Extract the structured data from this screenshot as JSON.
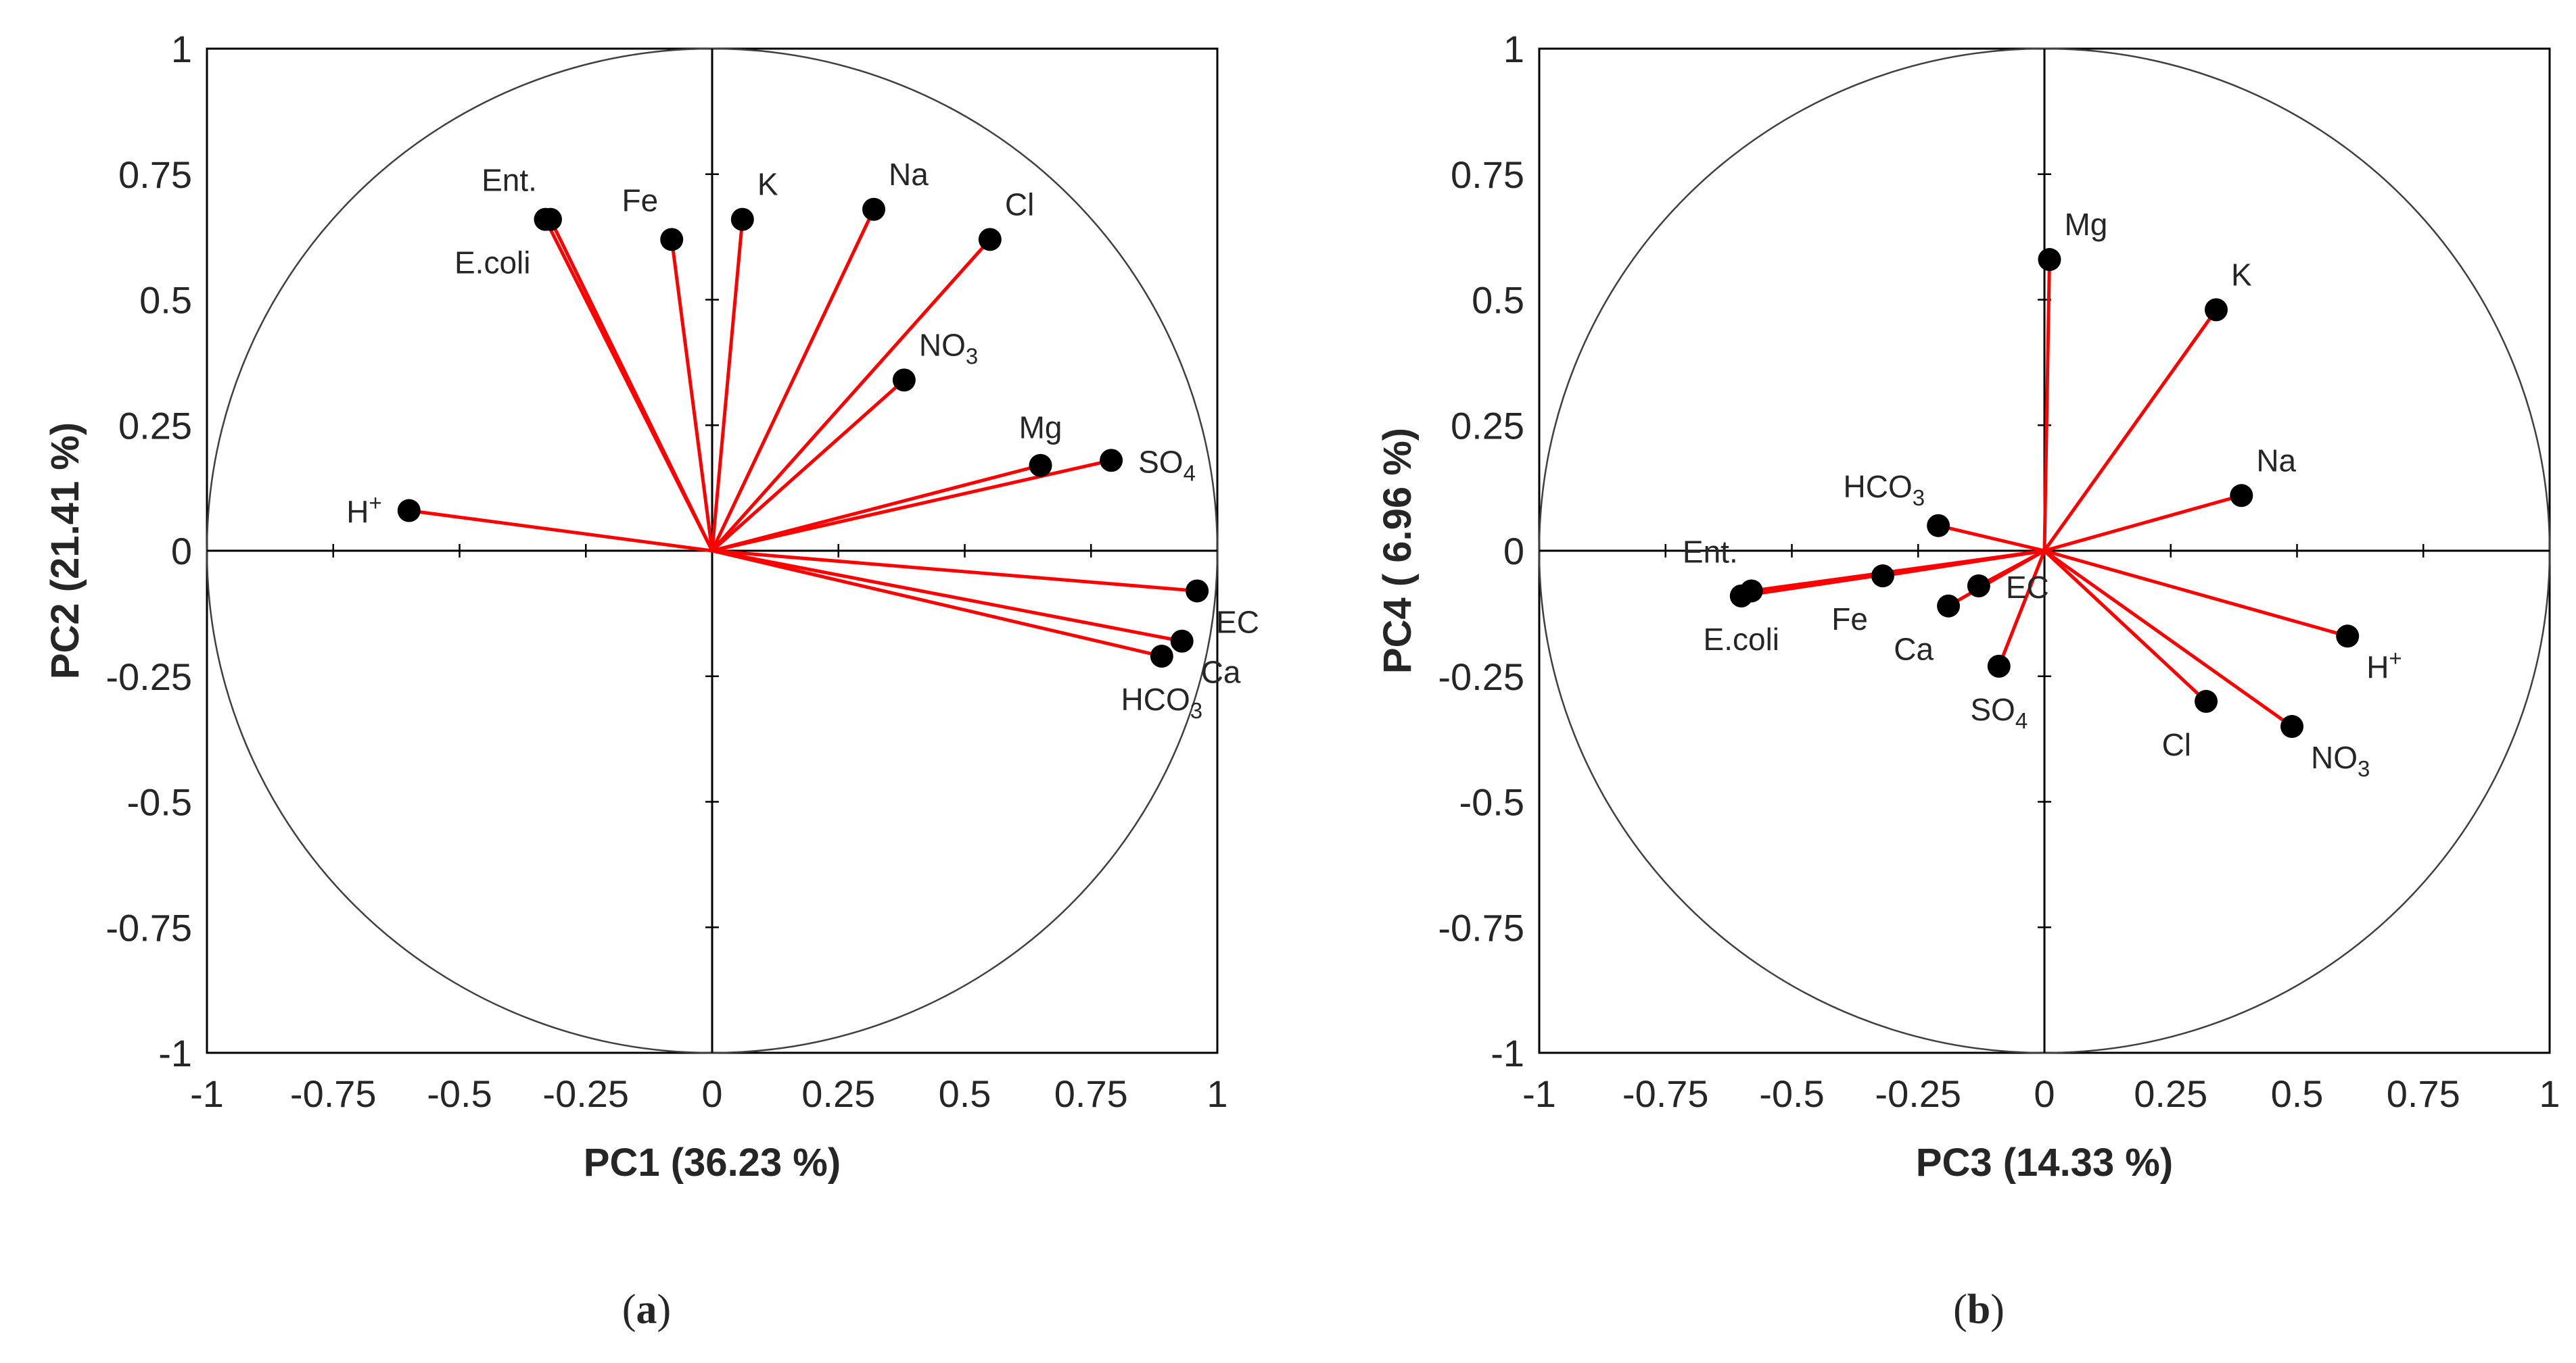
{
  "chart_data": [
    {
      "type": "scatter",
      "subtype": "pca-loading-correlation-circle",
      "caption": {
        "open": "(",
        "letter": "a",
        "close": ")"
      },
      "xlabel": "PC1 (36.23 %)",
      "ylabel": "PC2 (21.41 %)",
      "xlim": [
        -1,
        1
      ],
      "ylim": [
        -1,
        1
      ],
      "ticks": [
        -1,
        -0.75,
        -0.5,
        -0.25,
        0,
        0.25,
        0.5,
        0.75,
        1
      ],
      "tick_labels": [
        "-1",
        "-0.75",
        "-0.5",
        "-0.25",
        "0",
        "0.25",
        "0.5",
        "0.75",
        "1"
      ],
      "grid": false,
      "unit_circle": true,
      "colors": {
        "vector": "#ff0000",
        "point": "#000000",
        "axis": "#000000",
        "circle": "#404040"
      },
      "points": [
        {
          "label": "Ent.",
          "x": -0.32,
          "y": 0.66,
          "anchor": "above-left"
        },
        {
          "label": "E.coli",
          "x": -0.33,
          "y": 0.66,
          "anchor": "below-left"
        },
        {
          "label": "Fe",
          "x": -0.08,
          "y": 0.62,
          "anchor": "above-left"
        },
        {
          "label": "K",
          "x": 0.06,
          "y": 0.66,
          "anchor": "above-right"
        },
        {
          "label": "Na",
          "x": 0.32,
          "y": 0.68,
          "anchor": "above-right"
        },
        {
          "label": "Cl",
          "x": 0.55,
          "y": 0.62,
          "anchor": "above-right"
        },
        {
          "label": "NO",
          "sub": "3",
          "x": 0.38,
          "y": 0.34,
          "anchor": "above-right"
        },
        {
          "label": "Mg",
          "x": 0.65,
          "y": 0.17,
          "anchor": "above"
        },
        {
          "label": "SO",
          "sub": "4",
          "x": 0.79,
          "y": 0.18,
          "anchor": "right"
        },
        {
          "label": "H",
          "sup": "+",
          "x": -0.6,
          "y": 0.08,
          "anchor": "left"
        },
        {
          "label": "EC",
          "x": 0.96,
          "y": -0.08,
          "anchor": "below-right"
        },
        {
          "label": "Ca",
          "x": 0.93,
          "y": -0.18,
          "anchor": "below-right"
        },
        {
          "label": "HCO",
          "sub": "3",
          "x": 0.89,
          "y": -0.21,
          "anchor": "below"
        }
      ]
    },
    {
      "type": "scatter",
      "subtype": "pca-loading-correlation-circle",
      "caption": {
        "open": "(",
        "letter": "b",
        "close": ")"
      },
      "xlabel": "PC3 (14.33 %)",
      "ylabel": "PC4 ( 6.96 %)",
      "xlim": [
        -1,
        1
      ],
      "ylim": [
        -1,
        1
      ],
      "ticks": [
        -1,
        -0.75,
        -0.5,
        -0.25,
        0,
        0.25,
        0.5,
        0.75,
        1
      ],
      "tick_labels": [
        "-1",
        "-0.75",
        "-0.5",
        "-0.25",
        "0",
        "0.25",
        "0.5",
        "0.75",
        "1"
      ],
      "grid": false,
      "unit_circle": true,
      "colors": {
        "vector": "#ff0000",
        "point": "#000000",
        "axis": "#000000",
        "circle": "#404040"
      },
      "points": [
        {
          "label": "Mg",
          "x": 0.01,
          "y": 0.58,
          "anchor": "above-right"
        },
        {
          "label": "K",
          "x": 0.34,
          "y": 0.48,
          "anchor": "above-right"
        },
        {
          "label": "Na",
          "x": 0.39,
          "y": 0.11,
          "anchor": "above-right"
        },
        {
          "label": "HCO",
          "sub": "3",
          "x": -0.21,
          "y": 0.05,
          "anchor": "above-left"
        },
        {
          "label": "Ent.",
          "x": -0.58,
          "y": -0.08,
          "anchor": "above-left"
        },
        {
          "label": "E.coli",
          "x": -0.6,
          "y": -0.09,
          "anchor": "below"
        },
        {
          "label": "Fe",
          "x": -0.32,
          "y": -0.05,
          "anchor": "below-left"
        },
        {
          "label": "EC",
          "x": -0.13,
          "y": -0.07,
          "anchor": "right"
        },
        {
          "label": "Ca",
          "x": -0.19,
          "y": -0.11,
          "anchor": "below-left"
        },
        {
          "label": "SO",
          "sub": "4",
          "x": -0.09,
          "y": -0.23,
          "anchor": "below"
        },
        {
          "label": "H",
          "sup": "+",
          "x": 0.6,
          "y": -0.17,
          "anchor": "below-right"
        },
        {
          "label": "Cl",
          "x": 0.32,
          "y": -0.3,
          "anchor": "below-left"
        },
        {
          "label": "NO",
          "sub": "3",
          "x": 0.49,
          "y": -0.35,
          "anchor": "below-right"
        }
      ]
    }
  ]
}
